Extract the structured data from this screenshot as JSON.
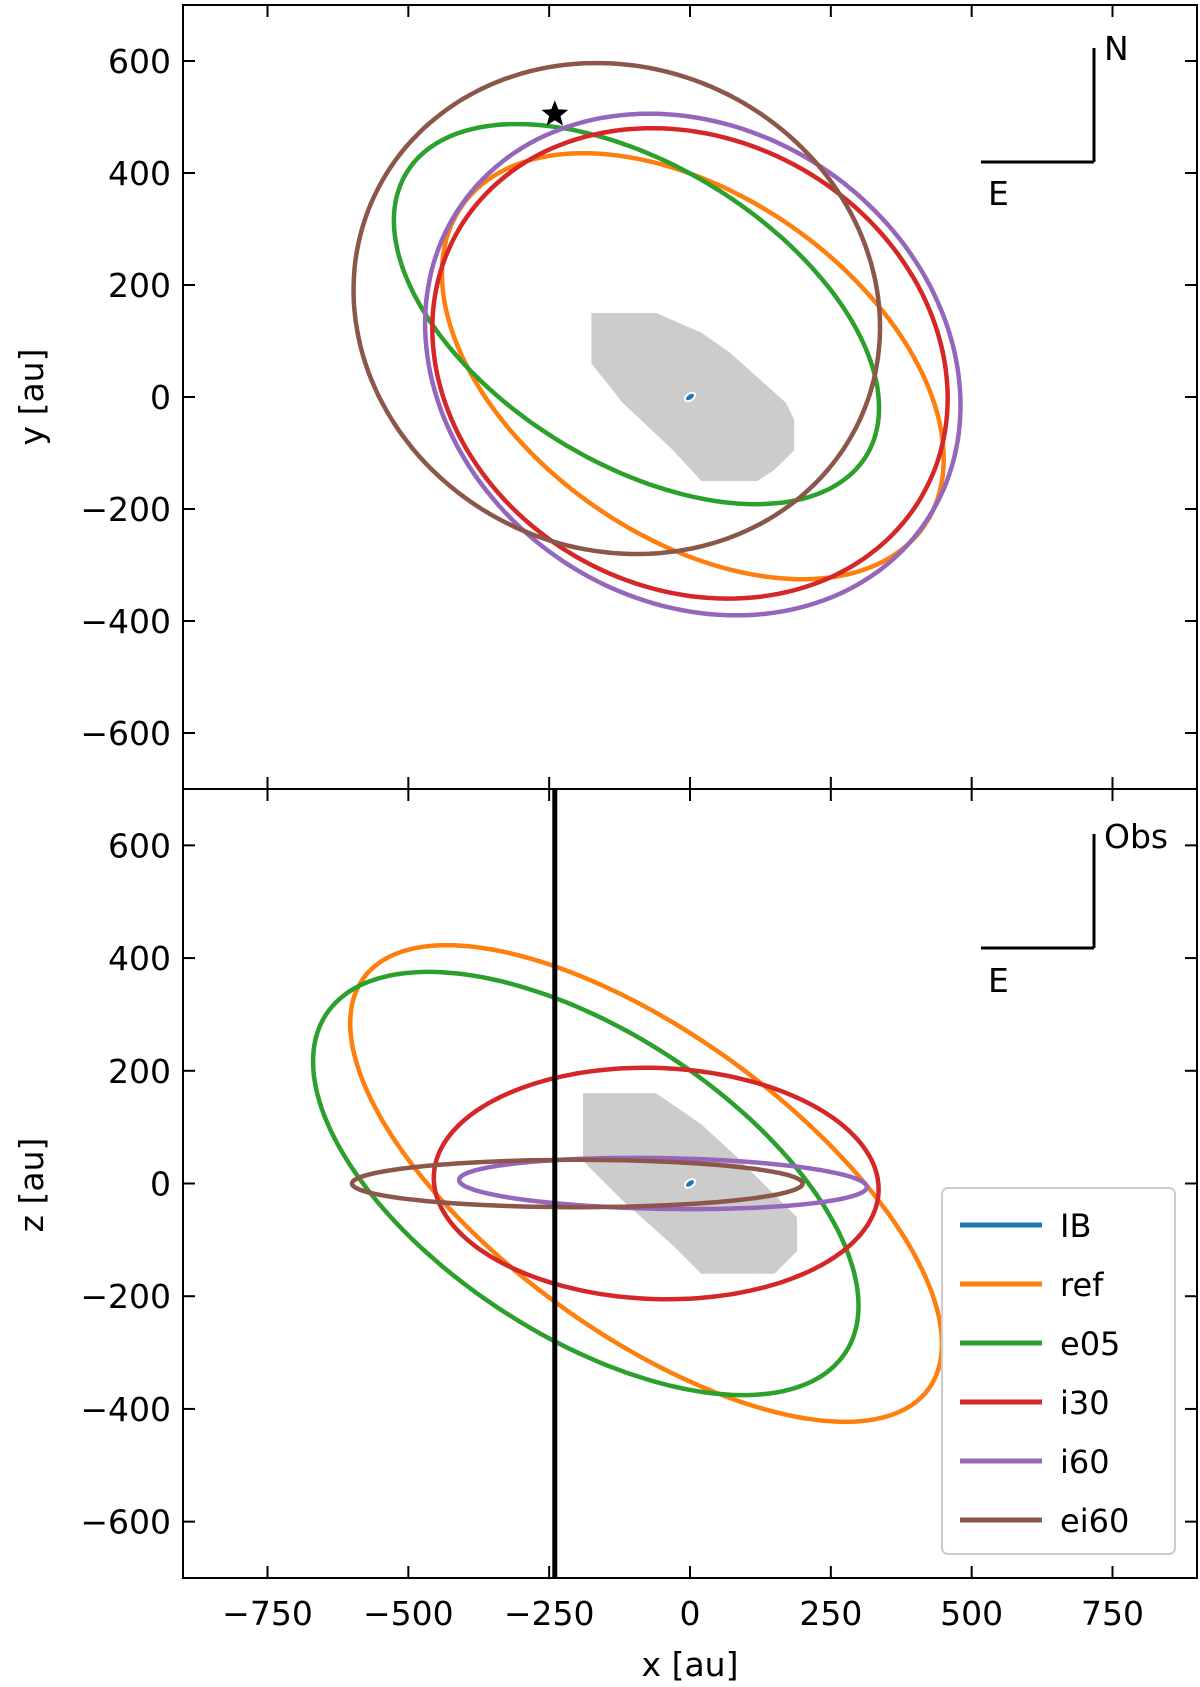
{
  "chart_data": {
    "type": "line",
    "shared_x_axis": {
      "label": "x [au]",
      "lim": [
        -900,
        900
      ],
      "ticks": [
        -750,
        -500,
        -250,
        0,
        250,
        500,
        750
      ],
      "tick_labels": [
        "−750",
        "−500",
        "−250",
        "0",
        "250",
        "500",
        "750"
      ]
    },
    "legend": {
      "placement": "lower-right",
      "entries": [
        "IB",
        "ref",
        "e05",
        "i30",
        "i60",
        "ei60"
      ]
    },
    "colors": {
      "IB": "#1f77b4",
      "ref": "#ff7f0e",
      "e05": "#2ca02c",
      "i30": "#d62728",
      "i60": "#9467bd",
      "ei60": "#8c564b",
      "disk": "#cccccc"
    },
    "panels": [
      {
        "id": "top",
        "ylabel": "y [au]",
        "ylim": [
          -700,
          700
        ],
        "yticks": [
          600,
          400,
          200,
          0,
          -200,
          -400,
          -600
        ],
        "ytick_labels": [
          "600",
          "400",
          "200",
          "0",
          "−200",
          "−400",
          "−600"
        ],
        "compass": {
          "vertical": "N",
          "horizontal": "E"
        },
        "star_marker": {
          "x": -240,
          "y": 505
        },
        "disk_polygon": [
          [
            -175,
            150
          ],
          [
            -150,
            150
          ],
          [
            -60,
            150
          ],
          [
            20,
            115
          ],
          [
            70,
            80
          ],
          [
            170,
            -10
          ],
          [
            185,
            -40
          ],
          [
            185,
            -95
          ],
          [
            150,
            -130
          ],
          [
            120,
            -150
          ],
          [
            50,
            -150
          ],
          [
            20,
            -150
          ],
          [
            -30,
            -95
          ],
          [
            -120,
            -10
          ],
          [
            -175,
            60
          ],
          [
            -175,
            130
          ]
        ],
        "series": [
          {
            "name": "IB",
            "cx": 0,
            "cy": 0,
            "a": 10,
            "b": 6,
            "angle": 35
          },
          {
            "name": "ref",
            "cx": 5,
            "cy": 55,
            "a": 500,
            "b": 305,
            "angle": -35
          },
          {
            "name": "e05",
            "cx": -95,
            "cy": 148,
            "a": 480,
            "b": 265,
            "angle": -32
          },
          {
            "name": "i30",
            "cx": 0,
            "cy": 60,
            "a": 475,
            "b": 400,
            "angle": -30
          },
          {
            "name": "i60",
            "cx": 5,
            "cy": 58,
            "a": 500,
            "b": 420,
            "angle": -35
          },
          {
            "name": "ei60",
            "cx": -130,
            "cy": 158,
            "a": 475,
            "b": 430,
            "angle": -25
          }
        ]
      },
      {
        "id": "bottom",
        "ylabel": "z [au]",
        "ylim": [
          -700,
          700
        ],
        "yticks": [
          600,
          400,
          200,
          0,
          -200,
          -400,
          -600
        ],
        "ytick_labels": [
          "600",
          "400",
          "200",
          "0",
          "−200",
          "−400",
          "−600"
        ],
        "compass": {
          "vertical": "Obs",
          "horizontal": "E"
        },
        "vertical_line_x": -240,
        "disk_polygon": [
          [
            -190,
            160
          ],
          [
            -140,
            160
          ],
          [
            -60,
            160
          ],
          [
            20,
            105
          ],
          [
            80,
            50
          ],
          [
            170,
            -40
          ],
          [
            190,
            -60
          ],
          [
            190,
            -120
          ],
          [
            150,
            -160
          ],
          [
            120,
            -160
          ],
          [
            50,
            -160
          ],
          [
            20,
            -160
          ],
          [
            -30,
            -110
          ],
          [
            -120,
            -30
          ],
          [
            -190,
            40
          ],
          [
            -190,
            120
          ]
        ],
        "series": [
          {
            "name": "IB",
            "cx": 0,
            "cy": 0,
            "a": 10,
            "b": 6,
            "angle": 35
          },
          {
            "name": "ref",
            "cx": -78,
            "cy": 0,
            "a": 620,
            "b": 265,
            "angle": -36
          },
          {
            "name": "e05",
            "cx": -185,
            "cy": 0,
            "a": 550,
            "b": 270,
            "angle": -33
          },
          {
            "name": "i30",
            "cx": -60,
            "cy": 0,
            "a": 395,
            "b": 205,
            "angle": -2
          },
          {
            "name": "i60",
            "cx": -48,
            "cy": 0,
            "a": 362,
            "b": 45,
            "angle": -1
          },
          {
            "name": "ei60",
            "cx": -200,
            "cy": 0,
            "a": 400,
            "b": 42,
            "angle": 0
          }
        ]
      }
    ]
  }
}
